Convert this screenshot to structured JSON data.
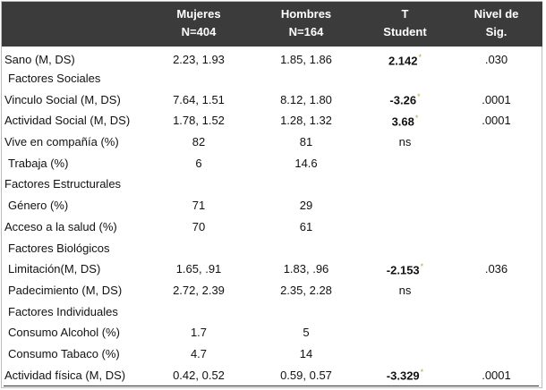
{
  "header": {
    "col0": "",
    "mujeres_1": "Mujeres",
    "mujeres_2": "N=404",
    "hombres_1": "Hombres",
    "hombres_2": "N=164",
    "t_1": "T",
    "t_2": "Student",
    "sig_1": "Nivel de",
    "sig_2": "Sig."
  },
  "rows": [
    {
      "label": "Sano (M, DS)",
      "m": "2.23, 1.93",
      "h": "1.85, 1.86",
      "t": "2.142",
      "star": "*",
      "bold": true,
      "sig": ".030"
    },
    {
      "label": "Factores Sociales",
      "m": "",
      "h": "",
      "t": "",
      "star": "",
      "bold": false,
      "sig": ""
    },
    {
      "label": "Vinculo Social (M, DS)",
      "m": "7.64, 1.51",
      "h": "8.12, 1.80",
      "t": "-3.26",
      "star": "*",
      "bold": true,
      "sig": ".0001"
    },
    {
      "label": "Actividad Social (M, DS)",
      "m": "1.78, 1.52",
      "h": "1.28, 1.32",
      "t": "3.68",
      "star": "*",
      "bold": true,
      "sig": ".0001"
    },
    {
      "label": "Vive en compañía (%)",
      "m": "82",
      "h": "81",
      "t": "ns",
      "star": "",
      "bold": false,
      "sig": ""
    },
    {
      "label": "Trabaja (%)",
      "m": "6",
      "h": "14.6",
      "t": "",
      "star": "",
      "bold": false,
      "sig": ""
    },
    {
      "label": "Factores Estructurales",
      "m": "",
      "h": "",
      "t": "",
      "star": "",
      "bold": false,
      "sig": ""
    },
    {
      "label": "Género (%)",
      "m": "71",
      "h": "29",
      "t": "",
      "star": "",
      "bold": false,
      "sig": ""
    },
    {
      "label": "Acceso a la salud (%)",
      "m": "70",
      "h": "61",
      "t": "",
      "star": "",
      "bold": false,
      "sig": ""
    },
    {
      "label": "Factores Biológicos",
      "m": "",
      "h": "",
      "t": "",
      "star": "",
      "bold": false,
      "sig": ""
    },
    {
      "label": "Limitación(M, DS)",
      "m": "1.65, .91",
      "h": "1.83, .96",
      "t": "-2.153",
      "star": "*",
      "bold": true,
      "sig": ".036"
    },
    {
      "label": "Padecimiento (M, DS)",
      "m": "2.72, 2.39",
      "h": "2.35, 2.28",
      "t": "ns",
      "star": "",
      "bold": false,
      "sig": ""
    },
    {
      "label": "Factores Individuales",
      "m": "",
      "h": "",
      "t": "",
      "star": "",
      "bold": false,
      "sig": ""
    },
    {
      "label": "Consumo Alcohol (%)",
      "m": "1.7",
      "h": "5",
      "t": "",
      "star": "",
      "bold": false,
      "sig": ""
    },
    {
      "label": "Consumo Tabaco (%)",
      "m": "4.7",
      "h": "14",
      "t": "",
      "star": "",
      "bold": false,
      "sig": ""
    },
    {
      "label": "Actividad física (M, DS)",
      "m": "0.42, 0.52",
      "h": "0.59, 0.57",
      "t": "-3.329",
      "star": "*",
      "bold": true,
      "sig": ".0001"
    }
  ]
}
